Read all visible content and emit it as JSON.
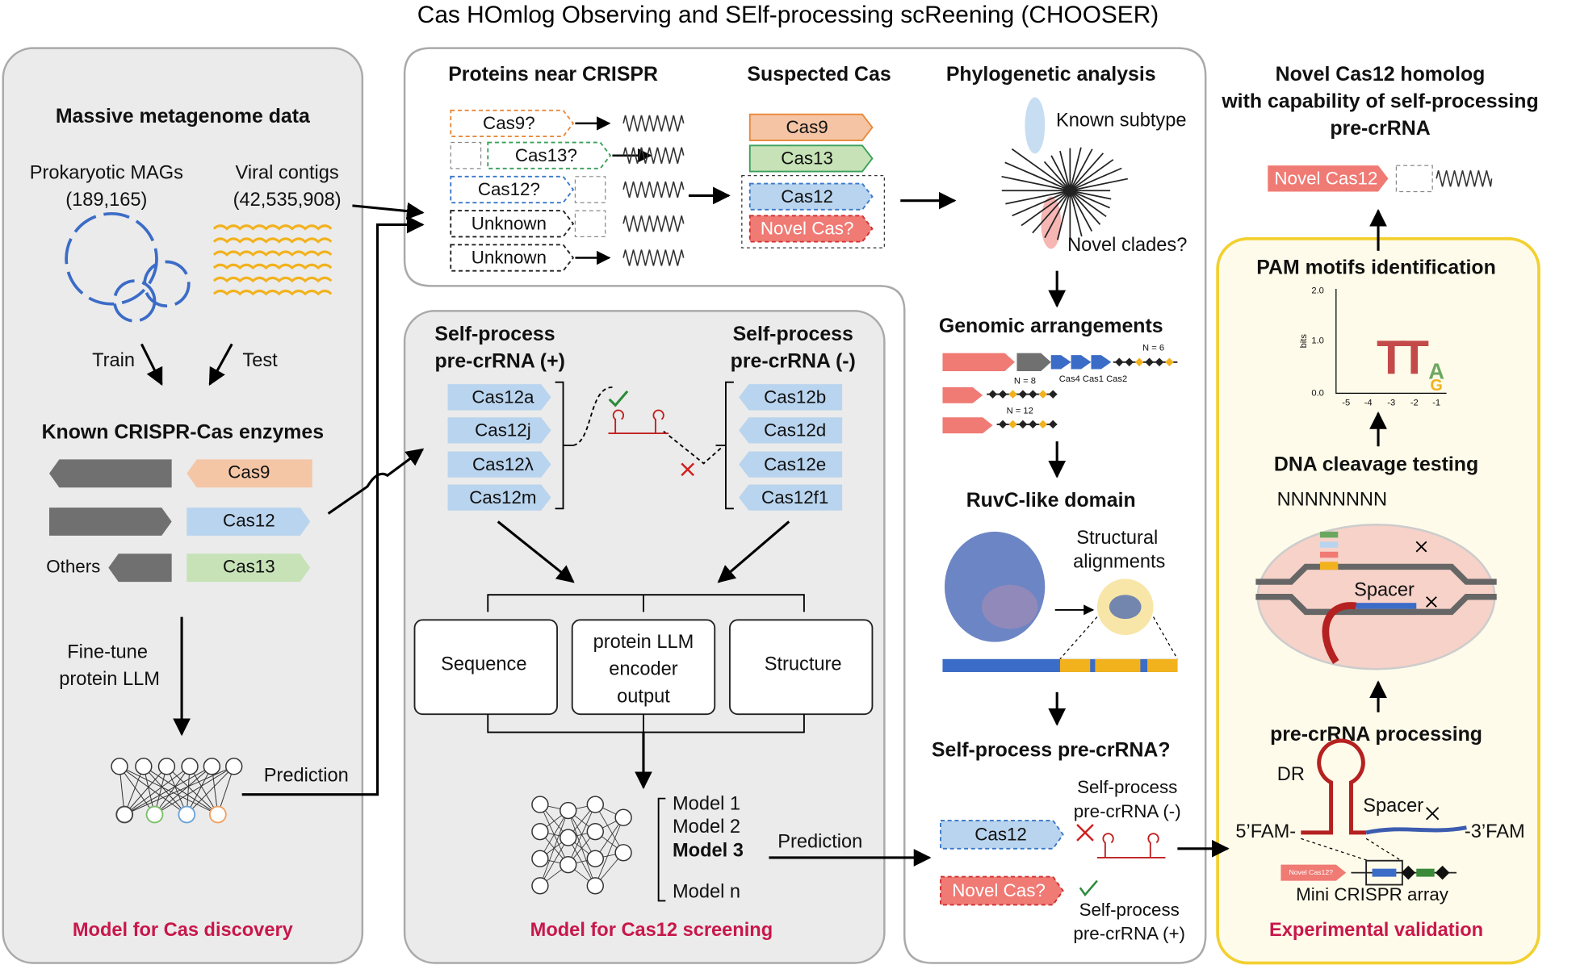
{
  "title": "Cas HOmlog Observing and SElf-processing scReening (CHOOSER)",
  "discovery": {
    "heading": "Massive metagenome data",
    "mags": "Prokaryotic MAGs",
    "mags_count": "(189,165)",
    "viral": "Viral contigs",
    "viral_count": "(42,535,908)",
    "train": "Train",
    "test": "Test",
    "known": "Known CRISPR-Cas enzymes",
    "enzymes": [
      "Cas9",
      "Cas12",
      "Cas13"
    ],
    "others": "Others",
    "finetune": [
      "Fine-tune",
      "protein LLM"
    ],
    "prediction": "Prediction",
    "footer": "Model for Cas discovery"
  },
  "search": {
    "proteins_heading": "Proteins near CRISPR",
    "candidates": [
      "Cas9?",
      "Cas13?",
      "Cas12?",
      "Unknown",
      "Unknown"
    ],
    "suspected_heading": "Suspected Cas",
    "suspected": [
      "Cas9",
      "Cas13",
      "Cas12",
      "Novel Cas?"
    ],
    "phylo_heading": "Phylogenetic analysis",
    "known_subtype": "Known subtype",
    "novel_clades": "Novel clades?"
  },
  "screening": {
    "pos_heading": [
      "Self-process",
      "pre-crRNA (+)"
    ],
    "neg_heading": [
      "Self-process",
      "pre-crRNA (-)"
    ],
    "positive": [
      "Cas12a",
      "Cas12j",
      "Cas12λ",
      "Cas12m"
    ],
    "negative": [
      "Cas12b",
      "Cas12d",
      "Cas12e",
      "Cas12f1"
    ],
    "sequence": "Sequence",
    "llm": [
      "protein LLM",
      "encoder",
      "output"
    ],
    "structure": "Structure",
    "models": [
      "Model 1",
      "Model 2",
      "Model 3",
      "Model n"
    ],
    "prediction": "Prediction",
    "footer": "Model for Cas12 screening"
  },
  "analysis": {
    "genomic_heading": "Genomic arrangements",
    "counts": [
      "N = 6",
      "N = 8",
      "N = 12"
    ],
    "cas_genes": "Cas4 Cas1 Cas2",
    "ruvc_heading": "RuvC-like domain",
    "structural": [
      "Structural",
      "alignments"
    ],
    "self_heading": "Self-process pre-crRNA?",
    "cas12": "Cas12",
    "novel": "Novel Cas?",
    "neg": [
      "Self-process",
      "pre-crRNA (-)"
    ],
    "pos": [
      "Self-process",
      "pre-crRNA (+)"
    ]
  },
  "validation": {
    "result_heading": [
      "Novel Cas12 homolog",
      "with capability of self-processing",
      "pre-crRNA"
    ],
    "result_label": "Novel Cas12",
    "pam_heading": "PAM motifs identification",
    "logo_yticks": [
      "2.0",
      "1.0",
      "0.0"
    ],
    "logo_ylabel": "bits",
    "logo_xticks": [
      "-5",
      "-4",
      "-3",
      "-2",
      "-1"
    ],
    "logo_letters": [
      "T",
      "T",
      "A",
      "G"
    ],
    "cleavage_heading": "DNA cleavage testing",
    "pam_seq": "NNNNNNNN",
    "spacer": "Spacer",
    "processing_heading": "pre-crRNA processing",
    "dr": "DR",
    "spacer2": "Spacer",
    "fam5": "5’FAM-",
    "fam3": "-3’FAM",
    "mini_label": "Novel Cas12?",
    "mini_array": "Mini CRISPR array",
    "footer": "Experimental validation"
  }
}
